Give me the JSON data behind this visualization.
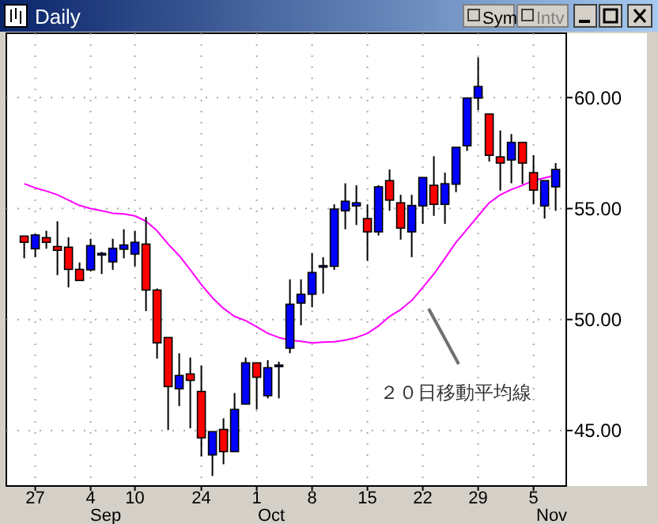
{
  "chart_data": {
    "type": "candlestick",
    "title": "Daily",
    "categories": [
      null,
      "27",
      null,
      null,
      null,
      null,
      "4",
      null,
      null,
      null,
      "10",
      null,
      null,
      null,
      null,
      null,
      "24",
      null,
      null,
      null,
      null,
      "1",
      null,
      null,
      null,
      null,
      "8",
      null,
      null,
      null,
      null,
      "15",
      null,
      null,
      null,
      null,
      "22",
      null,
      null,
      null,
      null,
      "29",
      null,
      null,
      null,
      null,
      "5",
      null,
      null
    ],
    "ohlc": [
      [
        53.76,
        53.76,
        52.76,
        53.48
      ],
      [
        53.19,
        53.86,
        52.81,
        53.81
      ],
      [
        53.69,
        54.0,
        53.19,
        53.48
      ],
      [
        53.29,
        54.43,
        52.0,
        53.12
      ],
      [
        53.26,
        53.71,
        51.45,
        52.26
      ],
      [
        52.26,
        52.57,
        51.76,
        51.76
      ],
      [
        52.24,
        53.64,
        52.17,
        53.33
      ],
      [
        52.95,
        53.05,
        52.05,
        52.98
      ],
      [
        52.6,
        53.64,
        52.24,
        53.21
      ],
      [
        53.17,
        54.07,
        52.76,
        53.36
      ],
      [
        52.95,
        54.0,
        52.4,
        53.48
      ],
      [
        53.4,
        54.62,
        50.38,
        51.33
      ],
      [
        51.33,
        51.4,
        48.24,
        48.95
      ],
      [
        49.19,
        49.19,
        45.02,
        46.98
      ],
      [
        46.88,
        48.48,
        46.1,
        47.48
      ],
      [
        47.55,
        48.29,
        45.1,
        47.26
      ],
      [
        46.76,
        47.93,
        43.83,
        44.67
      ],
      [
        43.9,
        44.95,
        42.95,
        44.95
      ],
      [
        45.05,
        45.55,
        43.48,
        44.05
      ],
      [
        44.05,
        46.69,
        44.05,
        45.95
      ],
      [
        46.19,
        48.29,
        46.19,
        48.05
      ],
      [
        48.05,
        48.05,
        45.95,
        47.4
      ],
      [
        46.57,
        48.17,
        46.45,
        47.83
      ],
      [
        47.93,
        48.1,
        46.45,
        47.95
      ],
      [
        48.71,
        51.81,
        48.48,
        50.69
      ],
      [
        50.74,
        51.81,
        49.74,
        51.14
      ],
      [
        51.14,
        53.0,
        50.55,
        52.12
      ],
      [
        52.4,
        52.81,
        51.17,
        52.43
      ],
      [
        52.4,
        55.19,
        52.24,
        54.98
      ],
      [
        54.9,
        56.14,
        54.07,
        55.33
      ],
      [
        55.12,
        56.05,
        54.26,
        55.26
      ],
      [
        54.55,
        55.19,
        52.64,
        53.95
      ],
      [
        53.95,
        56.05,
        53.79,
        55.98
      ],
      [
        56.26,
        56.76,
        54.9,
        55.38
      ],
      [
        55.26,
        55.62,
        53.6,
        54.12
      ],
      [
        53.95,
        55.62,
        52.81,
        55.14
      ],
      [
        55.12,
        56.4,
        54.31,
        56.4
      ],
      [
        56.05,
        57.36,
        54.67,
        55.19
      ],
      [
        55.19,
        56.62,
        54.31,
        56.12
      ],
      [
        56.1,
        57.76,
        55.74,
        57.76
      ],
      [
        57.83,
        59.98,
        57.6,
        59.98
      ],
      [
        59.98,
        61.81,
        59.43,
        60.5
      ],
      [
        59.26,
        59.26,
        57.12,
        57.4
      ],
      [
        57.33,
        58.52,
        55.81,
        57.05
      ],
      [
        57.19,
        58.36,
        56.14,
        57.98
      ],
      [
        57.98,
        57.98,
        56.1,
        57.05
      ],
      [
        56.62,
        57.4,
        55.19,
        55.83
      ],
      [
        55.12,
        56.26,
        54.55,
        56.26
      ],
      [
        55.98,
        57.05,
        54.9,
        56.76
      ]
    ],
    "colors": [
      "#ff0000",
      "#0000ff",
      "#ff0000",
      "#ff0000",
      "#ff0000",
      "#ff0000",
      "#0000ff",
      "#0000ff",
      "#0000ff",
      "#0000ff",
      "#0000ff",
      "#ff0000",
      "#ff0000",
      "#ff0000",
      "#0000ff",
      "#ff0000",
      "#ff0000",
      "#0000ff",
      "#ff0000",
      "#0000ff",
      "#0000ff",
      "#ff0000",
      "#0000ff",
      "#0000ff",
      "#0000ff",
      "#0000ff",
      "#0000ff",
      "#0000ff",
      "#0000ff",
      "#0000ff",
      "#0000ff",
      "#ff0000",
      "#0000ff",
      "#ff0000",
      "#ff0000",
      "#0000ff",
      "#0000ff",
      "#ff0000",
      "#0000ff",
      "#0000ff",
      "#0000ff",
      "#0000ff",
      "#ff0000",
      "#ff0000",
      "#0000ff",
      "#ff0000",
      "#ff0000",
      "#0000ff",
      "#0000ff"
    ],
    "series": [
      {
        "type": "line",
        "color": "#ff00ff",
        "values": [
          56.12,
          55.93,
          55.79,
          55.62,
          55.38,
          55.14,
          55.0,
          54.9,
          54.79,
          54.76,
          54.67,
          54.43,
          54.0,
          53.4,
          52.88,
          52.24,
          51.57,
          50.98,
          50.5,
          50.14,
          49.95,
          49.67,
          49.38,
          49.19,
          49.07,
          49.02,
          48.95,
          48.98,
          49.0,
          49.07,
          49.19,
          49.38,
          49.71,
          50.14,
          50.45,
          50.86,
          51.45,
          52.05,
          52.76,
          53.48,
          54.07,
          54.67,
          55.26,
          55.62,
          55.86,
          56.05,
          56.26,
          56.38,
          56.5
        ]
      }
    ],
    "ylim": [
      42.5,
      62.9
    ],
    "yticks": [
      {
        "value": 45,
        "label": "45.00"
      },
      {
        "value": 50,
        "label": "50.00"
      },
      {
        "value": 55,
        "label": "55.00"
      },
      {
        "value": 60,
        "label": "60.00"
      }
    ],
    "grid": true,
    "annotations": [
      "２０日移動平均線",
      "Sym",
      "Intv",
      "Sep",
      "Oct",
      "Nov"
    ]
  }
}
